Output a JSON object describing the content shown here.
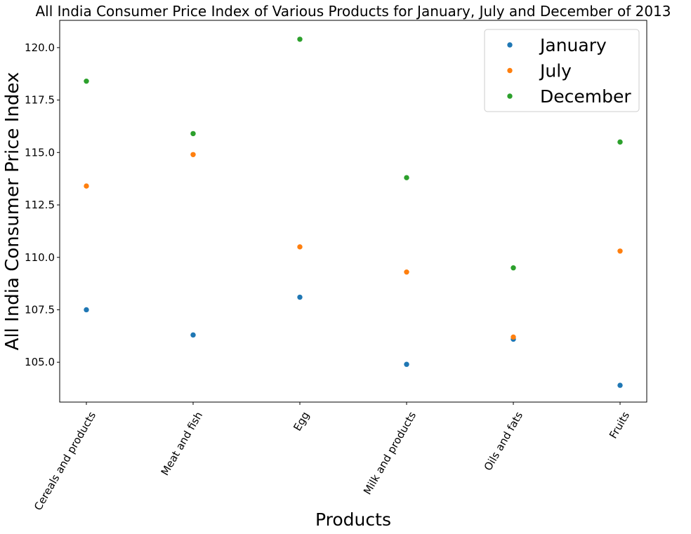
{
  "chart_data": {
    "type": "scatter",
    "title": "All India Consumer Price Index of Various Products for January, July and December of 2013",
    "xlabel": "Products",
    "ylabel": "All India Consumer Price Index",
    "categories": [
      "Cereals and products",
      "Meat and fish",
      "Egg",
      "Milk and products",
      "Oils and fats",
      "Fruits"
    ],
    "ylim": [
      103.1,
      121.3
    ],
    "yticks": [
      105.0,
      107.5,
      110.0,
      112.5,
      115.0,
      117.5,
      120.0
    ],
    "ytick_labels": [
      "105.0",
      "107.5",
      "110.0",
      "112.5",
      "115.0",
      "117.5",
      "120.0"
    ],
    "grid": false,
    "legend_position": "top-right",
    "series": [
      {
        "name": "January",
        "color": "#1f77b4",
        "values": [
          107.5,
          106.3,
          108.1,
          104.9,
          106.1,
          103.9
        ]
      },
      {
        "name": "July",
        "color": "#ff7f0e",
        "values": [
          113.4,
          114.9,
          110.5,
          109.3,
          106.2,
          110.3
        ]
      },
      {
        "name": "December",
        "color": "#2ca02c",
        "values": [
          118.4,
          115.9,
          120.4,
          113.8,
          109.5,
          115.5
        ]
      }
    ]
  }
}
